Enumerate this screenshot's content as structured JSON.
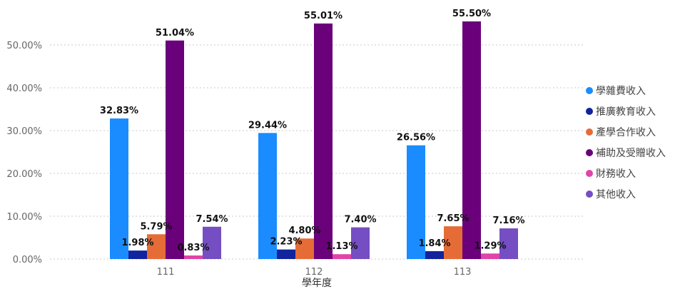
{
  "chart_data": {
    "type": "bar",
    "categories": [
      "111",
      "112",
      "113"
    ],
    "xlabel": "學年度",
    "ylabel": "",
    "ylim": [
      0,
      0.55
    ],
    "yticks": [
      0,
      0.1,
      0.2,
      0.3,
      0.4,
      0.5
    ],
    "ytick_labels": [
      "0.00%",
      "10.00%",
      "20.00%",
      "30.00%",
      "40.00%",
      "50.00%"
    ],
    "grid": true,
    "legend_position": "right",
    "series": [
      {
        "name": "學雜費收入",
        "color": "#1a8cff",
        "values": [
          0.3283,
          0.2944,
          0.2656
        ],
        "labels": [
          "32.83%",
          "29.44%",
          "26.56%"
        ]
      },
      {
        "name": "推廣教育收入",
        "color": "#12239e",
        "values": [
          0.0198,
          0.0223,
          0.0184
        ],
        "labels": [
          "1.98%",
          "2.23%",
          "1.84%"
        ]
      },
      {
        "name": "產學合作收入",
        "color": "#e66c37",
        "values": [
          0.0579,
          0.048,
          0.0765
        ],
        "labels": [
          "5.79%",
          "4.80%",
          "7.65%"
        ]
      },
      {
        "name": "補助及受贈收入",
        "color": "#6b007b",
        "values": [
          0.5104,
          0.5501,
          0.555
        ],
        "labels": [
          "51.04%",
          "55.01%",
          "55.50%"
        ]
      },
      {
        "name": "財務收入",
        "color": "#e044a7",
        "values": [
          0.0083,
          0.0113,
          0.0129
        ],
        "labels": [
          "0.83%",
          "1.13%",
          "1.29%"
        ]
      },
      {
        "name": "其他收入",
        "color": "#744ec2",
        "values": [
          0.0754,
          0.074,
          0.0716
        ],
        "labels": [
          "7.54%",
          "7.40%",
          "7.16%"
        ]
      }
    ]
  }
}
